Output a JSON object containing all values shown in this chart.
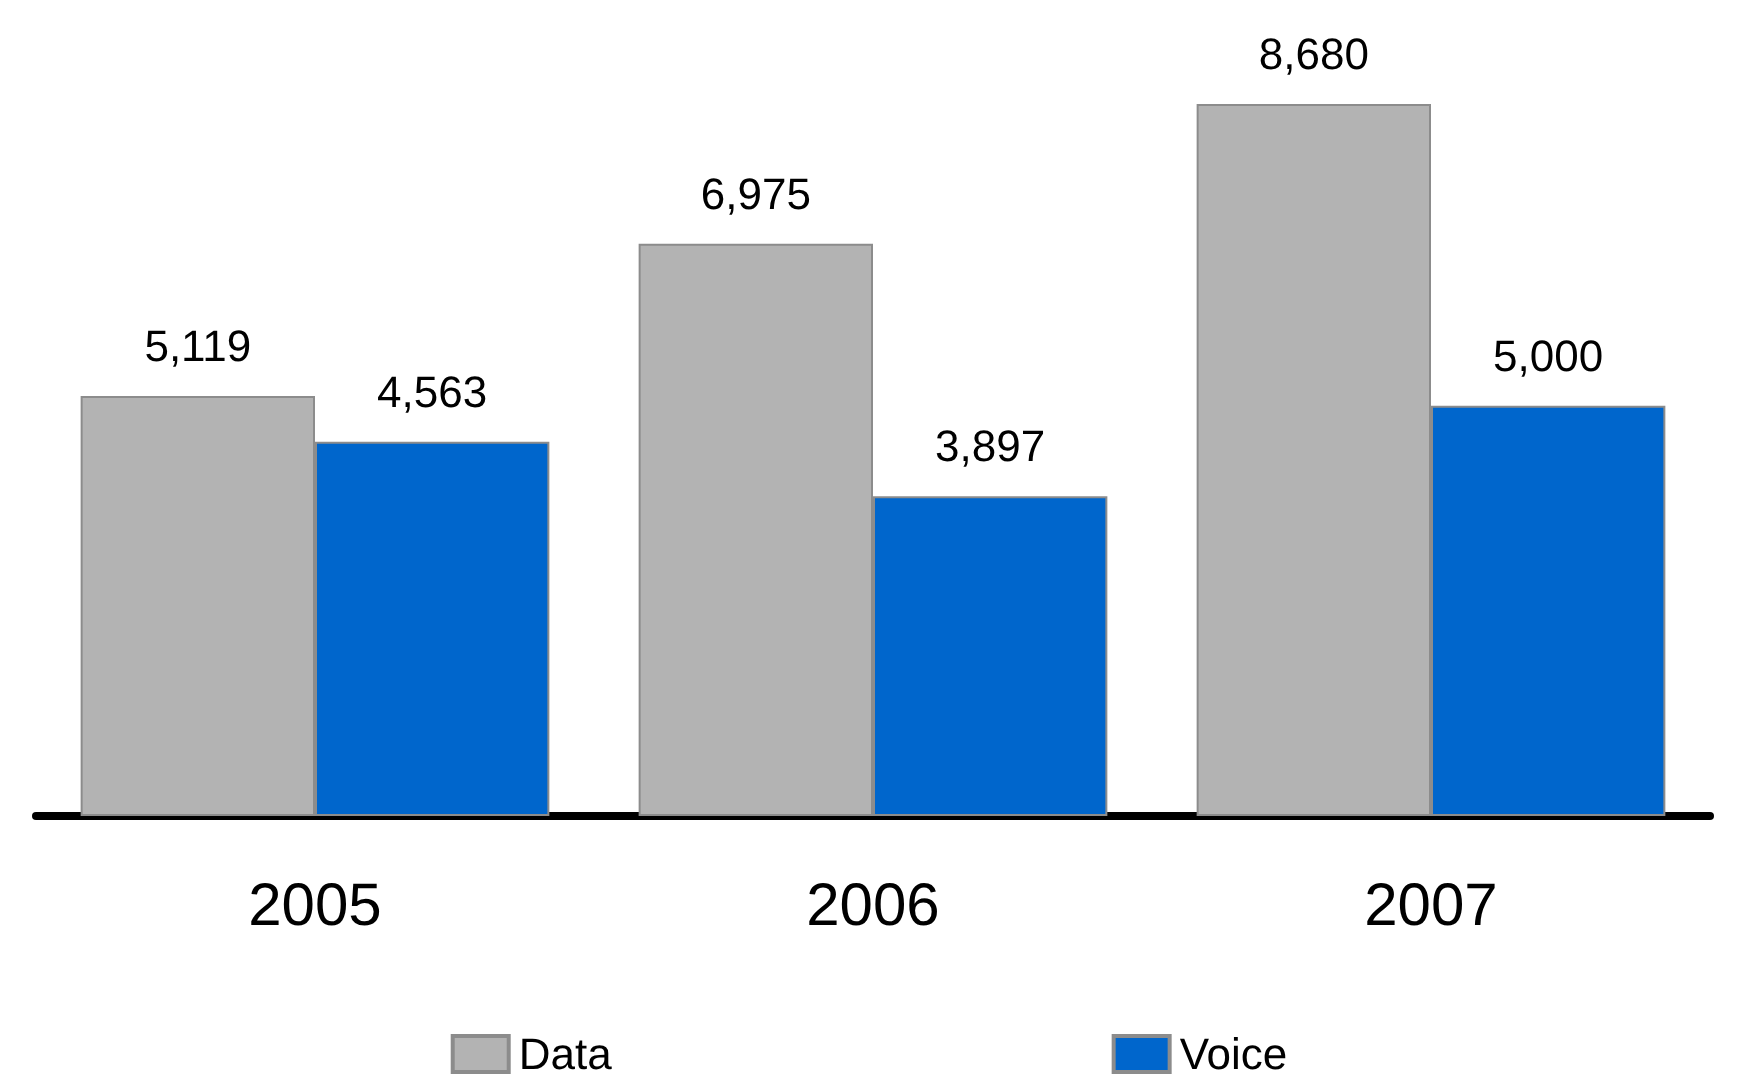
{
  "chart_data": {
    "type": "bar",
    "categories": [
      "2005",
      "2006",
      "2007"
    ],
    "series": [
      {
        "name": "Data",
        "color": "#b3b3b3",
        "values": [
          5119,
          6975,
          8680
        ],
        "value_labels": [
          "5,119",
          "6,975",
          "8,680"
        ]
      },
      {
        "name": "Voice",
        "color": "#0066cc",
        "values": [
          4563,
          3897,
          5000
        ],
        "value_labels": [
          "4,563",
          "3,897",
          "5,000"
        ]
      }
    ],
    "legend": "bottom"
  }
}
